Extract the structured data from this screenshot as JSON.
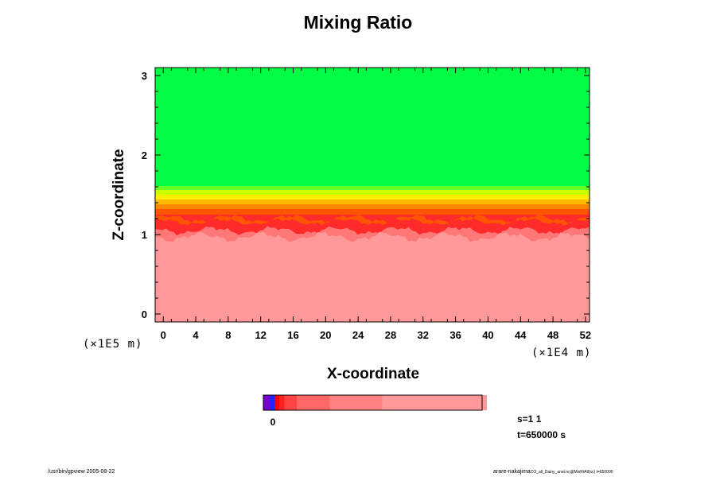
{
  "chart_data": {
    "type": "heatmap",
    "title": "Mixing Ratio",
    "xlabel": "X-coordinate",
    "ylabel": "Z-coordinate",
    "x_ticks": [
      "0",
      "4",
      "8",
      "12",
      "16",
      "20",
      "24",
      "28",
      "32",
      "36",
      "40",
      "44",
      "48",
      "52"
    ],
    "y_ticks": [
      "0",
      "1",
      "2",
      "3"
    ],
    "xlim": [
      -0.1,
      5.25
    ],
    "ylim": [
      -0.1,
      3.1
    ],
    "x_scale_label": "(×1E4 m)",
    "y_scale_label": "(×1E5 m)",
    "layers": [
      {
        "z_from": -0.1,
        "z_to": 1.0,
        "color": "#ff9999"
      },
      {
        "z_from": 1.0,
        "z_to": 1.12,
        "color": "#ff7777"
      },
      {
        "z_from": 1.12,
        "z_to": 1.25,
        "color": "#ff2a2a"
      },
      {
        "z_from": 1.25,
        "z_to": 1.32,
        "color": "#ff5500"
      },
      {
        "z_from": 1.32,
        "z_to": 1.38,
        "color": "#ff8800"
      },
      {
        "z_from": 1.38,
        "z_to": 1.44,
        "color": "#ffbb00"
      },
      {
        "z_from": 1.44,
        "z_to": 1.5,
        "color": "#ffee00"
      },
      {
        "z_from": 1.5,
        "z_to": 1.56,
        "color": "#ccff00"
      },
      {
        "z_from": 1.56,
        "z_to": 1.61,
        "color": "#66ff22"
      },
      {
        "z_from": 1.61,
        "z_to": 3.1,
        "color": "#00ff44"
      }
    ],
    "colorbar": {
      "colors": [
        "#7700cc",
        "#2222ff",
        "#ff0000",
        "#ff2222",
        "#ff4444",
        "#ff6666",
        "#ff8080",
        "#ff9999"
      ],
      "widths": [
        0.03,
        0.023,
        0.02,
        0.023,
        0.057,
        0.15,
        0.24,
        0.477
      ],
      "label": "0"
    }
  },
  "info": {
    "s_label": "s=1 1",
    "t_label": "t=650000 s"
  },
  "footer": {
    "left": "/usr/bin/gpview 2005-08-22",
    "right": "arare-nakajima",
    "right_small": "CO_all_Dainy_anal.nc@MixRtAll(sc) t=650000"
  }
}
